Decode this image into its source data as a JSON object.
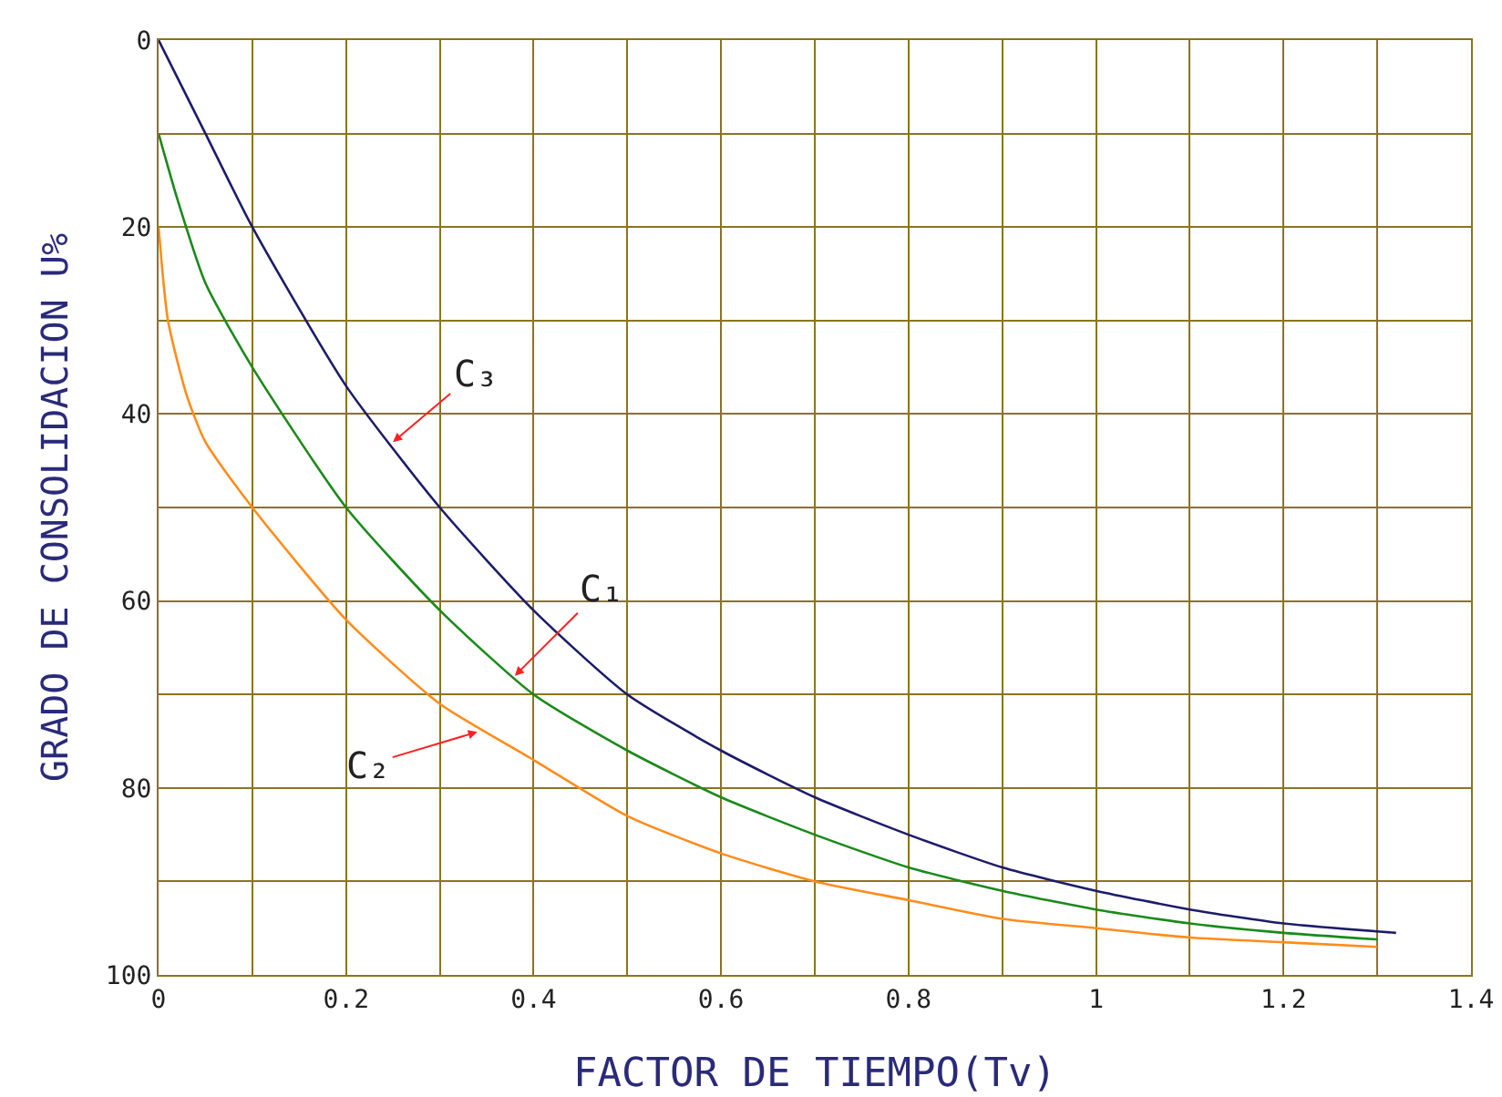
{
  "chart_data": {
    "type": "line",
    "xlabel": "FACTOR DE TIEMPO(Tv)",
    "ylabel": "GRADO DE CONSOLIDACION U%",
    "xlim": [
      0,
      1.4
    ],
    "ylim": [
      100,
      0
    ],
    "xticks": [
      0,
      {
        "value": 0.1,
        "label": null
      },
      0.2,
      {
        "value": 0.3,
        "label": null
      },
      0.4,
      {
        "value": 0.5,
        "label": null
      },
      0.6,
      {
        "value": 0.7,
        "label": null
      },
      0.8,
      {
        "value": 0.9,
        "label": null
      },
      1.0,
      {
        "value": 1.1,
        "label": null
      },
      1.2,
      {
        "value": 1.3,
        "label": null
      },
      1.4
    ],
    "yticks": [
      0,
      {
        "value": 10,
        "label": null
      },
      20,
      {
        "value": 30,
        "label": null
      },
      40,
      {
        "value": 50,
        "label": null
      },
      60,
      {
        "value": 70,
        "label": null
      },
      80,
      {
        "value": 90,
        "label": null
      },
      100
    ],
    "grid": true,
    "marker": "none",
    "line_style": "solid",
    "series": [
      {
        "color": "#1c1c6b",
        "x": [
          0,
          0.05,
          0.1,
          0.2,
          0.3,
          0.4,
          0.5,
          0.6,
          0.7,
          0.8,
          0.9,
          1.0,
          1.1,
          1.2,
          1.32
        ],
        "values": [
          0,
          10,
          20,
          37,
          50,
          61,
          70,
          76,
          81,
          85,
          88.5,
          91,
          93,
          94.5,
          95.5
        ]
      },
      {
        "color": "#1a8a1a",
        "x": [
          0,
          0.02,
          0.05,
          0.1,
          0.2,
          0.3,
          0.4,
          0.5,
          0.6,
          0.7,
          0.8,
          0.9,
          1.0,
          1.1,
          1.2,
          1.3
        ],
        "values": [
          10,
          17,
          26,
          35,
          50,
          61,
          70,
          76,
          81,
          85,
          88.5,
          91,
          93,
          94.5,
          95.5,
          96.2
        ]
      },
      {
        "color": "#ff8c1a",
        "x": [
          0,
          0.01,
          0.03,
          0.05,
          0.1,
          0.2,
          0.3,
          0.4,
          0.5,
          0.6,
          0.7,
          0.8,
          0.9,
          1.0,
          1.1,
          1.2,
          1.3
        ],
        "values": [
          20,
          30,
          38,
          43,
          50,
          62,
          71,
          77,
          83,
          87,
          90,
          92,
          94,
          95,
          96,
          96.5,
          97
        ]
      }
    ],
    "annotations": [
      {
        "text": "C₃",
        "x": 0.25,
        "y": 43
      },
      {
        "text": "C₁",
        "x": 0.38,
        "y": 68
      },
      {
        "text": "C₂",
        "x": 0.34,
        "y": 74
      }
    ]
  }
}
